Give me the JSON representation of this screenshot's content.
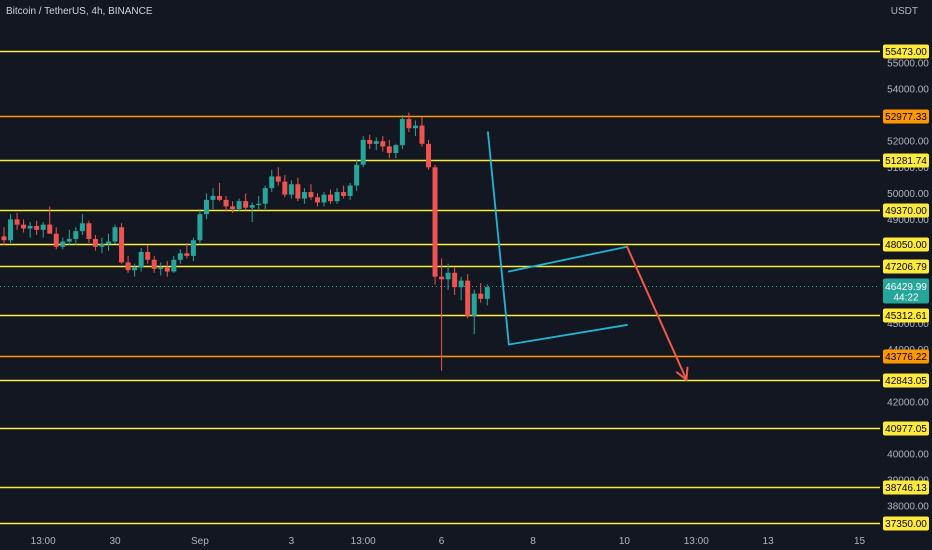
{
  "header": {
    "symbol_title": "Bitcoin / TetherUS, 4h, BINANCE",
    "currency": "USDT"
  },
  "colors": {
    "background": "#131722",
    "up": "#26a69a",
    "down": "#ef5350",
    "level_yellow": "#ffeb3b",
    "level_orange": "#ff9800",
    "trend_line": "#22b4d2",
    "projection_arrow": "#f05a46",
    "current_price": "#26a69a"
  },
  "chart_data": {
    "type": "candlestick",
    "y_axis": {
      "min": 37080,
      "max": 57420,
      "scale": "linear",
      "tick_values": [
        38000,
        39000,
        40000,
        42000,
        44000,
        45000,
        49000,
        50000,
        51000,
        52000,
        54000,
        55000
      ],
      "tick_labels": [
        "38000.00",
        "39000.00",
        "40000.00",
        "42000.00",
        "44000.00",
        "45000.00",
        "49000.00",
        "50000.00",
        "51000.00",
        "52000.00",
        "54000.00",
        "55000.00"
      ]
    },
    "x_axis": {
      "min": 0,
      "max": 130,
      "unit": "4h bars",
      "ticks": [
        {
          "x": 6,
          "label": "13:00"
        },
        {
          "x": 17,
          "label": "30"
        },
        {
          "x": 30,
          "label": "Sep"
        },
        {
          "x": 44,
          "label": "3"
        },
        {
          "x": 55,
          "label": "13:00"
        },
        {
          "x": 67,
          "label": "6"
        },
        {
          "x": 81,
          "label": "8"
        },
        {
          "x": 95,
          "label": "10"
        },
        {
          "x": 106,
          "label": "13:00"
        },
        {
          "x": 117,
          "label": "13"
        },
        {
          "x": 131,
          "label": "15"
        }
      ]
    },
    "levels": [
      {
        "price": 55473,
        "label": "55473.00",
        "color": "#ffeb3b"
      },
      {
        "price": 52977.33,
        "label": "52977.33",
        "color": "#ff9800"
      },
      {
        "price": 51281.74,
        "label": "51281.74",
        "color": "#ffeb3b"
      },
      {
        "price": 49370,
        "label": "49370.00",
        "color": "#ffeb3b"
      },
      {
        "price": 48050,
        "label": "48050.00",
        "color": "#ffeb3b"
      },
      {
        "price": 47206.79,
        "label": "47206.79",
        "color": "#ffeb3b"
      },
      {
        "price": 45312.61,
        "label": "45312.61",
        "color": "#ffeb3b"
      },
      {
        "price": 43776.22,
        "label": "43776.22",
        "color": "#ff9800"
      },
      {
        "price": 42843.05,
        "label": "42843.05",
        "color": "#ffeb3b"
      },
      {
        "price": 40977.05,
        "label": "40977.05",
        "color": "#ffeb3b"
      },
      {
        "price": 38746.13,
        "label": "38746.13",
        "color": "#ffeb3b"
      },
      {
        "price": 37350,
        "label": "37350.00",
        "color": "#ffeb3b"
      }
    ],
    "current_price": {
      "price": 46429.99,
      "label": "46429.99",
      "countdown": "44:22"
    },
    "candles": [
      {
        "o": 48350,
        "h": 48700,
        "l": 48000,
        "c": 48200
      },
      {
        "o": 48200,
        "h": 49200,
        "l": 48100,
        "c": 49000
      },
      {
        "o": 49000,
        "h": 49250,
        "l": 48600,
        "c": 48800
      },
      {
        "o": 48800,
        "h": 49000,
        "l": 48500,
        "c": 48650
      },
      {
        "o": 48650,
        "h": 48900,
        "l": 48300,
        "c": 48750
      },
      {
        "o": 48750,
        "h": 48950,
        "l": 48400,
        "c": 48600
      },
      {
        "o": 48600,
        "h": 48900,
        "l": 48300,
        "c": 48800
      },
      {
        "o": 48800,
        "h": 49500,
        "l": 48600,
        "c": 48450
      },
      {
        "o": 48450,
        "h": 48700,
        "l": 47850,
        "c": 47950
      },
      {
        "o": 47950,
        "h": 48300,
        "l": 47850,
        "c": 48150
      },
      {
        "o": 48150,
        "h": 48600,
        "l": 48000,
        "c": 48250
      },
      {
        "o": 48250,
        "h": 48700,
        "l": 48000,
        "c": 48550
      },
      {
        "o": 48550,
        "h": 49200,
        "l": 48400,
        "c": 48850
      },
      {
        "o": 48850,
        "h": 48950,
        "l": 48100,
        "c": 48250
      },
      {
        "o": 48250,
        "h": 48400,
        "l": 47800,
        "c": 47950
      },
      {
        "o": 47950,
        "h": 48300,
        "l": 47700,
        "c": 48050
      },
      {
        "o": 48050,
        "h": 48450,
        "l": 47800,
        "c": 48150
      },
      {
        "o": 48150,
        "h": 48800,
        "l": 48050,
        "c": 48700
      },
      {
        "o": 48700,
        "h": 48850,
        "l": 47300,
        "c": 47350
      },
      {
        "o": 47350,
        "h": 47600,
        "l": 46950,
        "c": 47050
      },
      {
        "o": 47050,
        "h": 47300,
        "l": 46800,
        "c": 47150
      },
      {
        "o": 47150,
        "h": 47900,
        "l": 47000,
        "c": 47750
      },
      {
        "o": 47750,
        "h": 48000,
        "l": 47300,
        "c": 47450
      },
      {
        "o": 47450,
        "h": 47600,
        "l": 46950,
        "c": 47100
      },
      {
        "o": 47100,
        "h": 47350,
        "l": 46850,
        "c": 47150
      },
      {
        "o": 47150,
        "h": 47400,
        "l": 46800,
        "c": 47000
      },
      {
        "o": 47000,
        "h": 47600,
        "l": 46950,
        "c": 47450
      },
      {
        "o": 47450,
        "h": 47850,
        "l": 47300,
        "c": 47700
      },
      {
        "o": 47700,
        "h": 48100,
        "l": 47500,
        "c": 47600
      },
      {
        "o": 47600,
        "h": 48300,
        "l": 47400,
        "c": 48200
      },
      {
        "o": 48200,
        "h": 49400,
        "l": 48100,
        "c": 49200
      },
      {
        "o": 49200,
        "h": 50000,
        "l": 49000,
        "c": 49750
      },
      {
        "o": 49750,
        "h": 50200,
        "l": 49400,
        "c": 49900
      },
      {
        "o": 49900,
        "h": 50400,
        "l": 49700,
        "c": 49750
      },
      {
        "o": 49750,
        "h": 49900,
        "l": 49300,
        "c": 49500
      },
      {
        "o": 49500,
        "h": 49700,
        "l": 49250,
        "c": 49400
      },
      {
        "o": 49400,
        "h": 49800,
        "l": 49300,
        "c": 49700
      },
      {
        "o": 49700,
        "h": 50000,
        "l": 49350,
        "c": 49450
      },
      {
        "o": 49450,
        "h": 49650,
        "l": 48900,
        "c": 49550
      },
      {
        "o": 49550,
        "h": 49900,
        "l": 49400,
        "c": 49600
      },
      {
        "o": 49600,
        "h": 50300,
        "l": 49400,
        "c": 50200
      },
      {
        "o": 50200,
        "h": 50900,
        "l": 50050,
        "c": 50650
      },
      {
        "o": 50650,
        "h": 51000,
        "l": 50300,
        "c": 50450
      },
      {
        "o": 50450,
        "h": 50700,
        "l": 49850,
        "c": 49950
      },
      {
        "o": 49950,
        "h": 50500,
        "l": 49800,
        "c": 50350
      },
      {
        "o": 50350,
        "h": 50600,
        "l": 49700,
        "c": 49800
      },
      {
        "o": 49800,
        "h": 50200,
        "l": 49600,
        "c": 50050
      },
      {
        "o": 50050,
        "h": 50350,
        "l": 49750,
        "c": 49850
      },
      {
        "o": 49850,
        "h": 50000,
        "l": 49500,
        "c": 49650
      },
      {
        "o": 49650,
        "h": 50050,
        "l": 49500,
        "c": 49950
      },
      {
        "o": 49950,
        "h": 50150,
        "l": 49600,
        "c": 49700
      },
      {
        "o": 49700,
        "h": 50200,
        "l": 49600,
        "c": 50050
      },
      {
        "o": 50050,
        "h": 50300,
        "l": 49800,
        "c": 49900
      },
      {
        "o": 49900,
        "h": 50400,
        "l": 49750,
        "c": 50300
      },
      {
        "o": 50300,
        "h": 51300,
        "l": 50100,
        "c": 51100
      },
      {
        "o": 51100,
        "h": 52200,
        "l": 51000,
        "c": 52050
      },
      {
        "o": 52050,
        "h": 52250,
        "l": 51700,
        "c": 51900
      },
      {
        "o": 51900,
        "h": 52150,
        "l": 51650,
        "c": 52000
      },
      {
        "o": 52000,
        "h": 52200,
        "l": 51600,
        "c": 51800
      },
      {
        "o": 51800,
        "h": 52050,
        "l": 51350,
        "c": 51550
      },
      {
        "o": 51550,
        "h": 51900,
        "l": 51350,
        "c": 51850
      },
      {
        "o": 51850,
        "h": 53000,
        "l": 51700,
        "c": 52850
      },
      {
        "o": 52850,
        "h": 53100,
        "l": 52350,
        "c": 52500
      },
      {
        "o": 52500,
        "h": 52800,
        "l": 52200,
        "c": 52600
      },
      {
        "o": 52600,
        "h": 52950,
        "l": 51800,
        "c": 51900
      },
      {
        "o": 51900,
        "h": 52050,
        "l": 50900,
        "c": 51000
      },
      {
        "o": 51000,
        "h": 51100,
        "l": 46500,
        "c": 46800
      },
      {
        "o": 46800,
        "h": 47500,
        "l": 43200,
        "c": 46700
      },
      {
        "o": 46700,
        "h": 47300,
        "l": 46300,
        "c": 46950
      },
      {
        "o": 46950,
        "h": 47150,
        "l": 46100,
        "c": 46400
      },
      {
        "o": 46400,
        "h": 46800,
        "l": 45900,
        "c": 46650
      },
      {
        "o": 46650,
        "h": 46900,
        "l": 45200,
        "c": 45300
      },
      {
        "o": 45300,
        "h": 46300,
        "l": 44600,
        "c": 46150
      },
      {
        "o": 46150,
        "h": 46550,
        "l": 45800,
        "c": 45950
      },
      {
        "o": 45950,
        "h": 46500,
        "l": 45700,
        "c": 46400
      }
    ],
    "drawings": {
      "channel_upper": [
        {
          "x": 77.3,
          "y": 47000
        },
        {
          "x": 95.4,
          "y": 47950
        }
      ],
      "channel_lower": [
        {
          "x": 77.3,
          "y": 44200
        },
        {
          "x": 95.4,
          "y": 44950
        }
      ],
      "drop_line": [
        {
          "x": 74.1,
          "y": 52350
        },
        {
          "x": 77.3,
          "y": 44200
        }
      ],
      "projection_arrow": [
        {
          "x": 95.4,
          "y": 47950
        },
        {
          "x": 104.5,
          "y": 42850
        }
      ]
    }
  }
}
